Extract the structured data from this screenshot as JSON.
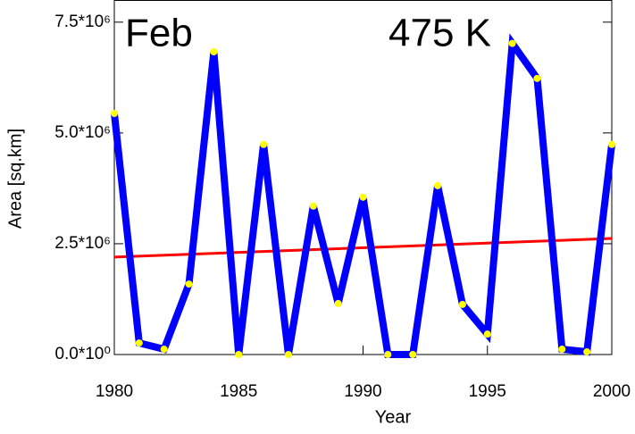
{
  "chart_data": {
    "type": "line",
    "annotations": [
      "Feb",
      "475 K"
    ],
    "xlabel": "Year",
    "ylabel": "Area [sq.km]",
    "x": [
      1980,
      1981,
      1982,
      1983,
      1984,
      1985,
      1986,
      1987,
      1988,
      1989,
      1990,
      1991,
      1992,
      1993,
      1994,
      1995,
      1996,
      1997,
      1998,
      1999,
      2000
    ],
    "series": [
      {
        "color": "#0000ff",
        "marker_color": "#ffff00",
        "values": [
          5440000,
          260000,
          120000,
          1590000,
          6830000,
          0,
          4740000,
          0,
          3350000,
          1150000,
          3550000,
          0,
          0,
          3810000,
          1130000,
          460000,
          7020000,
          6230000,
          120000,
          60000,
          4740000
        ]
      }
    ],
    "trend": {
      "color": "#ff0000",
      "x": [
        1980,
        2000
      ],
      "values": [
        2200000,
        2620000
      ]
    },
    "xlim": [
      1980,
      2000
    ],
    "xticks": [
      1980,
      1985,
      1990,
      1995,
      2000
    ],
    "ylim": [
      0,
      8000000
    ],
    "yticks": [
      {
        "value": 0,
        "label": "0.0*10⁰"
      },
      {
        "value": 2500000,
        "label": "2.5*10⁶"
      },
      {
        "value": 5000000,
        "label": "5.0*10⁶"
      },
      {
        "value": 7500000,
        "label": "7.5*10⁶"
      }
    ]
  }
}
